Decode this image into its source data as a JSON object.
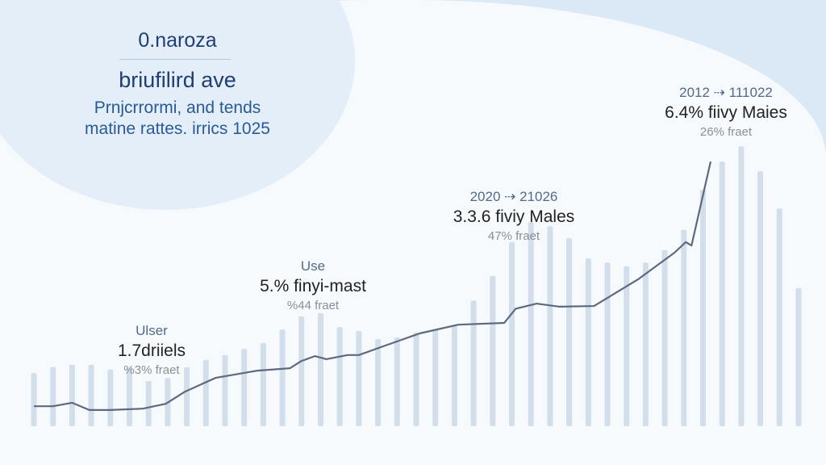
{
  "header": {
    "brand": "0.naroza",
    "title": "briufilird ave",
    "subtitle_line1": "Prnjcrrormi, and tends",
    "subtitle_line2": "matine rattes. irrics 1025"
  },
  "colors": {
    "accent": "#1f3f73",
    "bar": "#d3deeb",
    "line": "#5d6a7d",
    "bg": "#dbe9f6",
    "panel": "#f7fafd"
  },
  "chart_data": {
    "type": "bar",
    "title": "briufilird ave",
    "xlabel": "",
    "ylabel": "",
    "ylim": [
      0,
      100
    ],
    "grid": false,
    "bars": [
      15.4,
      17.1,
      17.8,
      17.8,
      16.4,
      17.1,
      13.1,
      14,
      17.1,
      19.2,
      20.6,
      22.4,
      24.1,
      28,
      31.8,
      32.7,
      28.7,
      27.6,
      25.2,
      25.7,
      27.1,
      28,
      29.4,
      36.4,
      43.5,
      53.3,
      59.1,
      57.9,
      54.4,
      48.6,
      47.4,
      46.3,
      47.4,
      51,
      56.8,
      68.5,
      76.6,
      81,
      73.8,
      63,
      40
    ],
    "line": {
      "x": [
        0,
        1,
        2,
        2.9,
        4,
        5.7,
        6.9,
        7.9,
        9.5,
        11.7,
        13.4,
        14,
        14.7,
        15.3,
        16.4,
        17,
        18.4,
        20.2,
        22.2,
        24.6,
        25.2,
        26.3,
        27.5,
        29.3,
        31.6,
        33.5,
        34.1,
        34.4,
        35.4
      ],
      "y": [
        5.8,
        5.8,
        6.8,
        4.7,
        4.7,
        5.1,
        6.5,
        10,
        14,
        16.1,
        16.8,
        18.9,
        20.3,
        19.4,
        20.6,
        20.6,
        23.4,
        26.9,
        29.4,
        29.9,
        34,
        35.5,
        34.6,
        34.8,
        42.5,
        50.2,
        53.3,
        52.3,
        76.6
      ]
    },
    "annotations": [
      {
        "top": "Ulser",
        "main": "1.7driiels",
        "sub": "%3% fraet"
      },
      {
        "top": "Use",
        "main": "5.% finyi-mast",
        "sub": "%44 fraet"
      },
      {
        "top": "2020 ⇢ 21026",
        "main": "3.3.6 fiviy Males",
        "sub": "47% fraet"
      },
      {
        "top": "2012 ⇢ 111022",
        "main": "6.4% fiivy Maies",
        "sub": "26% fraet"
      }
    ]
  }
}
